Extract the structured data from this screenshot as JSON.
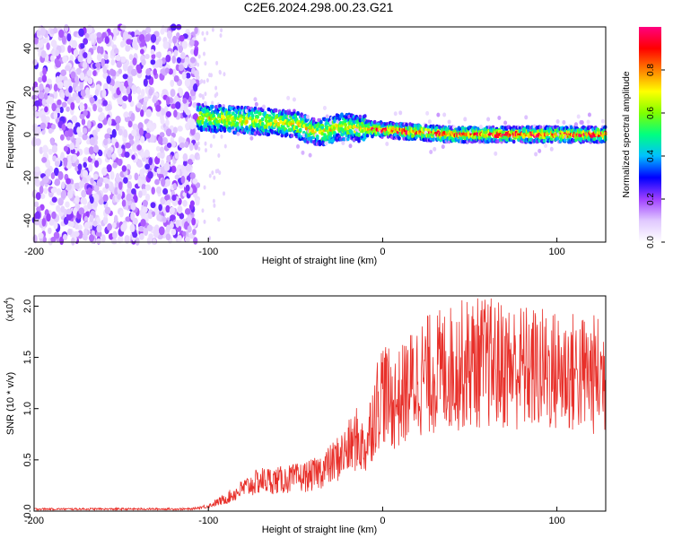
{
  "chart_data": [
    {
      "type": "heatmap",
      "title": "C2E6.2024.298.00.23.G21",
      "xlabel": "Height of straight line (km)",
      "ylabel": "Frequency (Hz)",
      "xlim": [
        -200,
        128
      ],
      "ylim": [
        -50,
        50
      ],
      "xticks": [
        -200,
        -100,
        0,
        100
      ],
      "yticks": [
        -40,
        -20,
        0,
        20,
        40
      ],
      "colorbar": {
        "label": "Normalized spectral amplitude",
        "range": [
          0.0,
          1.0
        ],
        "ticks": [
          "0.0",
          "0.2",
          "0.4",
          "0.6",
          "0.8"
        ],
        "tick_values": [
          0.0,
          0.2,
          0.4,
          0.6,
          0.8
        ],
        "colormap": [
          "#ffffff",
          "#e0c8ff",
          "#a040ff",
          "#0000ff",
          "#00c0ff",
          "#00ff80",
          "#80ff00",
          "#ffff00",
          "#ff8000",
          "#ff0000",
          "#ff0080"
        ]
      },
      "description_regions": [
        {
          "x_range": [
            -200,
            -106
          ],
          "y_range": [
            -50,
            50
          ],
          "amplitude": [
            0.05,
            0.25
          ],
          "kind": "noise"
        },
        {
          "x_range": [
            -106,
            128
          ],
          "center_freq_start": 8,
          "center_freq_end": 0,
          "amplitude_peak": 1.0,
          "kind": "signal"
        }
      ]
    },
    {
      "type": "line",
      "xlabel": "Height of straight line (km)",
      "ylabel": "SNR (10 * v/v)",
      "y_multiplier": "(x10",
      "y_multiplier_exp": "4",
      "y_multiplier_close": ")",
      "xlim": [
        -200,
        128
      ],
      "ylim": [
        0,
        2.1
      ],
      "xticks": [
        -200,
        -100,
        0,
        100
      ],
      "yticks": [
        0.0,
        0.5,
        1.0,
        1.5,
        2.0
      ],
      "ytick_labels": [
        "0.0",
        "0.5",
        "1.0",
        "1.5",
        "2.0"
      ],
      "series_color": "#e8302a",
      "envelope": {
        "x": [
          -200,
          -110,
          -100,
          -90,
          -80,
          -70,
          -60,
          -50,
          -40,
          -30,
          -20,
          -15,
          -10,
          -5,
          0,
          5,
          10,
          15,
          20,
          30,
          40,
          50,
          60,
          70,
          80,
          90,
          100,
          110,
          120,
          128
        ],
        "y": [
          0.02,
          0.02,
          0.05,
          0.12,
          0.22,
          0.3,
          0.3,
          0.32,
          0.35,
          0.45,
          0.6,
          0.7,
          0.6,
          0.95,
          1.2,
          1.05,
          1.1,
          1.2,
          1.3,
          1.35,
          1.4,
          1.45,
          1.45,
          1.42,
          1.4,
          1.38,
          1.36,
          1.35,
          1.33,
          1.32
        ]
      }
    }
  ]
}
